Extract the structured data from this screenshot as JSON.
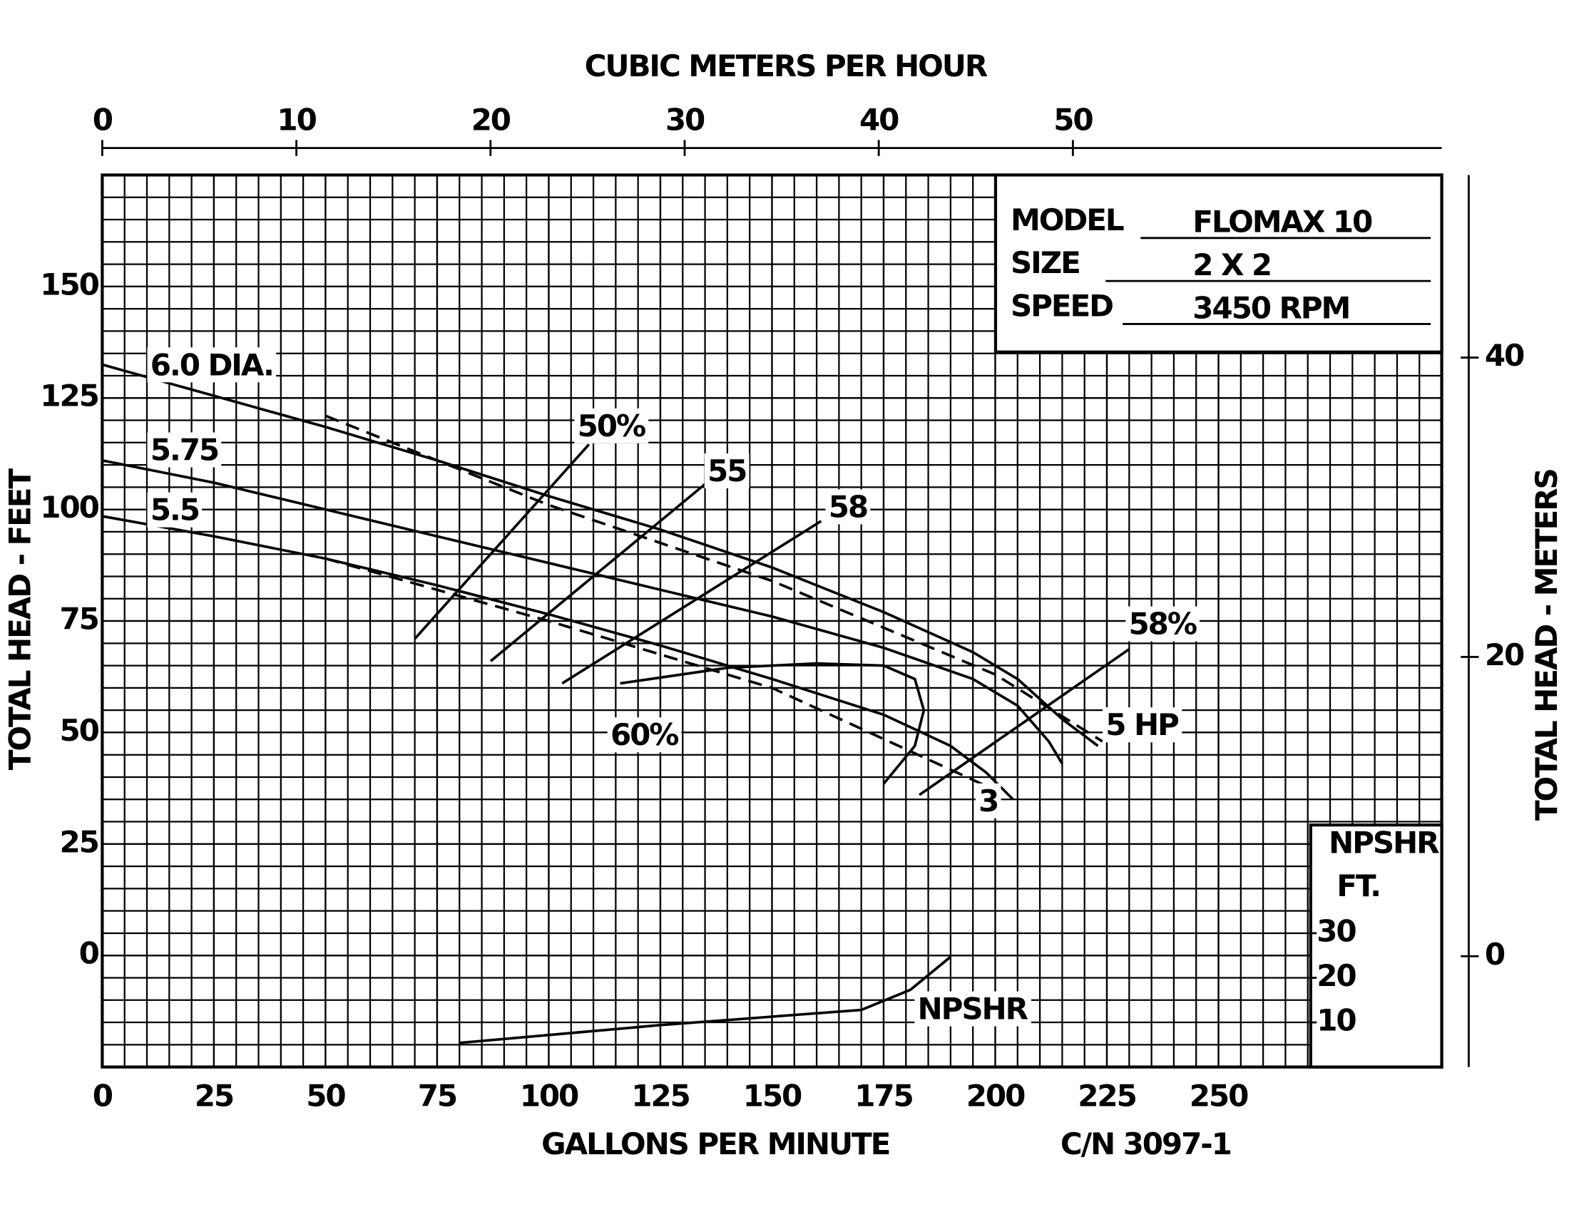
{
  "chart_data": {
    "type": "line",
    "title": "CUBIC METERS PER HOUR",
    "x_label": "GALLONS PER MINUTE",
    "y_label": "TOTAL HEAD - FEET",
    "y2_label": "TOTAL HEAD - METERS",
    "footnote": "C/N 3097-1",
    "xlim": [
      0,
      300
    ],
    "xticks": [
      0,
      25,
      50,
      75,
      100,
      125,
      150,
      175,
      200,
      225,
      250
    ],
    "ylim": [
      -25,
      175
    ],
    "yticks": [
      0,
      25,
      50,
      75,
      100,
      125,
      150
    ],
    "x2lim": [
      0,
      69
    ],
    "x2ticks": [
      0,
      10,
      20,
      30,
      40,
      50
    ],
    "y2lim": [
      -7.4,
      52.2
    ],
    "y2ticks": [
      0,
      20,
      40
    ],
    "y3_title": "NPSHR",
    "y3_unit": "FT.",
    "y3lim": [
      0,
      200
    ],
    "y3ticks": [
      10,
      20,
      30
    ],
    "grid": true,
    "info": [
      {
        "label": "MODEL",
        "value": "FLOMAX 10"
      },
      {
        "label": "SIZE",
        "value": "2 X 2"
      },
      {
        "label": "SPEED",
        "value": "3450 RPM"
      }
    ],
    "series": [
      {
        "name": "6.0 DIA.",
        "color": "#000000",
        "x": [
          0,
          25,
          50,
          75,
          100,
          125,
          150,
          175,
          195,
          205,
          215,
          223
        ],
        "values": [
          132.5,
          125.5,
          118.5,
          111,
          103,
          95.5,
          87,
          77,
          68,
          62,
          53,
          47
        ]
      },
      {
        "name": "5.75",
        "color": "#000000",
        "x": [
          0,
          25,
          50,
          75,
          100,
          125,
          150,
          175,
          195,
          205,
          212,
          215
        ],
        "values": [
          111,
          106,
          100,
          94,
          88,
          82,
          76,
          69,
          62,
          56,
          48,
          43
        ]
      },
      {
        "name": "5.5",
        "color": "#000000",
        "x": [
          0,
          25,
          50,
          75,
          100,
          125,
          150,
          175,
          190,
          198,
          204
        ],
        "values": [
          98.5,
          94,
          89,
          83,
          76.5,
          69.5,
          62,
          54,
          47,
          41,
          35
        ]
      },
      {
        "name": "5 HP",
        "color": "#000000",
        "dashed": true,
        "x": [
          50,
          100,
          150,
          200,
          224
        ],
        "values": [
          121,
          101,
          84,
          63,
          48
        ]
      },
      {
        "name": "3",
        "color": "#000000",
        "dashed": true,
        "x": [
          50,
          100,
          150,
          198
        ],
        "values": [
          89,
          75,
          60,
          38
        ]
      },
      {
        "name": "50%",
        "color": "#000000",
        "x": [
          70,
          109
        ],
        "values": [
          71,
          114.6
        ]
      },
      {
        "name": "55",
        "color": "#000000",
        "x": [
          87,
          135
        ],
        "values": [
          66,
          105.7
        ]
      },
      {
        "name": "58",
        "color": "#000000",
        "x": [
          103,
          161
        ],
        "values": [
          61,
          97.4
        ]
      },
      {
        "name": "60%",
        "color": "#000000",
        "x": [
          116,
          140,
          160,
          175,
          182,
          184,
          182,
          175
        ],
        "values": [
          61,
          64.5,
          65.5,
          65,
          62,
          55,
          47,
          38.5
        ]
      },
      {
        "name": "58%",
        "color": "#000000",
        "x": [
          183,
          230
        ],
        "values": [
          36,
          68.7
        ]
      },
      {
        "name": "NPSHR",
        "color": "#000000",
        "axis": "y3",
        "x": [
          80,
          125,
          170,
          181,
          190
        ],
        "values": [
          5.4,
          9.4,
          12.8,
          17.3,
          24.7
        ]
      }
    ]
  }
}
